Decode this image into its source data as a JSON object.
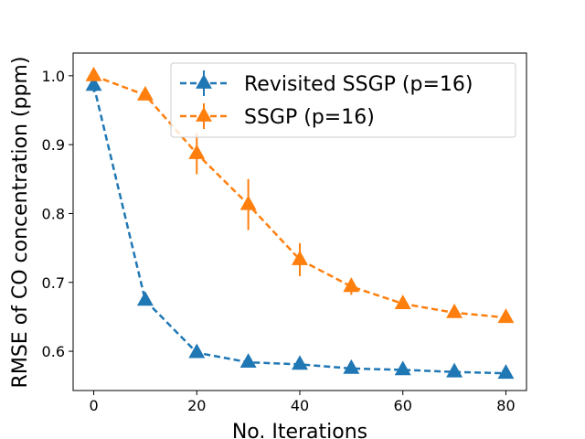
{
  "chart_data": {
    "type": "line",
    "title": "",
    "xlabel": "No. Iterations",
    "ylabel": "RMSE of CO concentration (ppm)",
    "xlim": [
      -4,
      84
    ],
    "ylim": [
      0.543,
      1.033
    ],
    "xticks": [
      0,
      20,
      40,
      60,
      80
    ],
    "yticks": [
      0.6,
      0.7,
      0.8,
      0.9,
      1.0
    ],
    "xtick_labels": [
      "0",
      "20",
      "40",
      "60",
      "80"
    ],
    "ytick_labels": [
      "0.6",
      "0.7",
      "0.8",
      "0.9",
      "1.0"
    ],
    "grid": false,
    "legend_position": "top-right",
    "series": [
      {
        "name": "Revisited SSGP (p=16)",
        "color": "#1f77b4",
        "marker": "triangle-up",
        "linestyle": "dashed",
        "x": [
          0,
          10,
          20,
          30,
          40,
          50,
          60,
          70,
          80
        ],
        "y": [
          0.986,
          0.674,
          0.598,
          0.584,
          0.581,
          0.575,
          0.573,
          0.57,
          0.568
        ],
        "err": [
          0.01,
          0.004,
          0.004,
          0.003,
          0.003,
          0.003,
          0.003,
          0.003,
          0.003
        ]
      },
      {
        "name": "SSGP (p=16)",
        "color": "#ff7f0e",
        "marker": "triangle-up",
        "linestyle": "dashed",
        "x": [
          0,
          10,
          20,
          30,
          40,
          50,
          60,
          70,
          80
        ],
        "y": [
          1.0,
          0.972,
          0.887,
          0.813,
          0.733,
          0.694,
          0.669,
          0.656,
          0.649
        ],
        "err": [
          0.004,
          0.006,
          0.03,
          0.037,
          0.024,
          0.012,
          0.006,
          0.005,
          0.004
        ]
      }
    ]
  }
}
